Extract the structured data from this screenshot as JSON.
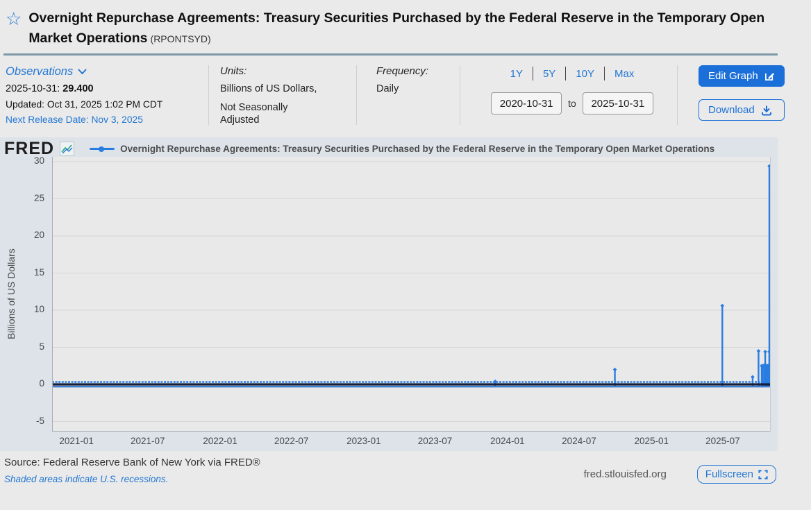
{
  "header": {
    "title": "Overnight Repurchase Agreements: Treasury Securities Purchased by the Federal Reserve in the Temporary Open Market Operations",
    "series_id": "(RPONTSYD)"
  },
  "meta": {
    "observations_label": "Observations",
    "latest_date": "2025-10-31:",
    "latest_value": "29.400",
    "updated": "Updated: Oct 31, 2025 1:02 PM CDT",
    "next_release": "Next Release Date: Nov 3, 2025",
    "units_label": "Units:",
    "units_line1": "Billions of US Dollars,",
    "units_line2": "Not Seasonally Adjusted",
    "frequency_label": "Frequency:",
    "frequency_value": "Daily"
  },
  "range": {
    "presets": [
      "1Y",
      "5Y",
      "10Y",
      "Max"
    ],
    "start_date": "2020-10-31",
    "to_label": "to",
    "end_date": "2025-10-31"
  },
  "actions": {
    "edit_graph": "Edit Graph",
    "download": "Download",
    "fullscreen": "Fullscreen"
  },
  "chart": {
    "logo": "FRED"
  },
  "footer": {
    "source": "Source: Federal Reserve Bank of New York via FRED®",
    "recessions_note": "Shaded areas indicate U.S. recessions.",
    "site": "fred.stlouisfed.org"
  },
  "colors": {
    "accent_blue": "#1b6fd8",
    "link_blue": "#2377d4",
    "line_blue": "#2a7de0",
    "baseline_dark": "#141f3c",
    "plot_bg": "#e9e9e9",
    "gridline": "#d5d5d5",
    "chart_card_bg": "#dde3e9"
  },
  "chart_data": {
    "type": "line",
    "title": "Overnight Repurchase Agreements: Treasury Securities Purchased by the Federal Reserve in the Temporary Open Market Operations",
    "ylabel": "Billions of US Dollars",
    "xlabel": "",
    "ylim": [
      -5,
      30
    ],
    "yticks": [
      30,
      25,
      20,
      15,
      10,
      5,
      0,
      -5
    ],
    "xticks": [
      "2021-01",
      "2021-07",
      "2022-01",
      "2022-07",
      "2023-01",
      "2023-07",
      "2024-01",
      "2024-07",
      "2025-01",
      "2025-07"
    ],
    "x_range": [
      "2020-10-31",
      "2025-10-31"
    ],
    "frequency": "Daily",
    "grid": true,
    "legend_position": "top",
    "baseline_value": 0,
    "note": "Series is flat at 0 on almost all days; non-zero spike observations read from the plot are listed below.",
    "spikes": [
      {
        "date": "2023-12-01",
        "value": 0.4
      },
      {
        "date": "2024-09-30",
        "value": 2.0
      },
      {
        "date": "2025-06-30",
        "value": 10.6
      },
      {
        "date": "2025-09-15",
        "value": 1.0
      },
      {
        "date": "2025-09-30",
        "value": 4.5
      },
      {
        "date": "2025-10-08",
        "value": 2.5
      },
      {
        "date": "2025-10-09",
        "value": 2.5
      },
      {
        "date": "2025-10-10",
        "value": 2.5
      },
      {
        "date": "2025-10-14",
        "value": 2.5
      },
      {
        "date": "2025-10-15",
        "value": 2.6
      },
      {
        "date": "2025-10-16",
        "value": 2.5
      },
      {
        "date": "2025-10-17",
        "value": 4.4
      },
      {
        "date": "2025-10-20",
        "value": 2.5
      },
      {
        "date": "2025-10-21",
        "value": 2.5
      },
      {
        "date": "2025-10-22",
        "value": 2.4
      },
      {
        "date": "2025-10-23",
        "value": 2.5
      },
      {
        "date": "2025-10-24",
        "value": 2.5
      },
      {
        "date": "2025-10-27",
        "value": 2.6
      },
      {
        "date": "2025-10-28",
        "value": 2.5
      },
      {
        "date": "2025-10-29",
        "value": 2.5
      },
      {
        "date": "2025-10-30",
        "value": 4.4
      },
      {
        "date": "2025-10-31",
        "value": 29.4
      }
    ],
    "last_observation": {
      "date": "2025-10-31",
      "value": 29.4
    }
  }
}
